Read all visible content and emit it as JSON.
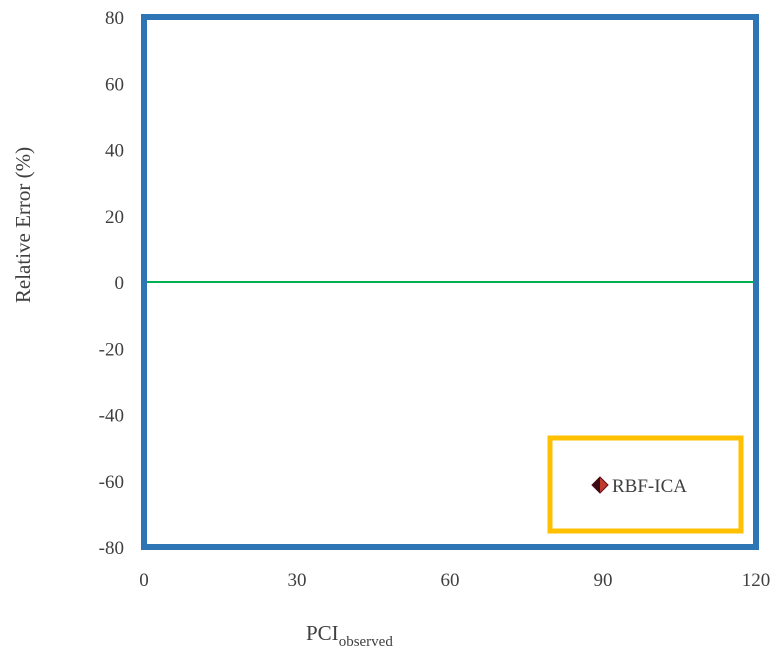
{
  "chart_data": {
    "type": "scatter",
    "title": "",
    "xlabel": "PCI",
    "xlabel_subscript": "observed",
    "ylabel": "Relative Error (%)",
    "xlim": [
      0,
      120
    ],
    "ylim": [
      -80,
      80
    ],
    "x_ticks": [
      0,
      30,
      60,
      90,
      120
    ],
    "y_ticks": [
      80,
      60,
      40,
      20,
      0,
      -20,
      -40,
      -60,
      -80
    ],
    "x_tick_labels": [
      "0",
      "30",
      "60",
      "90",
      "120"
    ],
    "y_tick_labels": [
      "80",
      "60",
      "40",
      "20",
      "0",
      "-20",
      "-40",
      "-60",
      "-80"
    ],
    "reference_line": {
      "y": 0,
      "color": "#00b050"
    },
    "grid": false,
    "legend_position": "bottom-right",
    "series": [
      {
        "name": "RBF-ICA",
        "marker": "diamond",
        "color": "#8b1a2e",
        "points": []
      }
    ],
    "colors": {
      "frame": "#2e75b6",
      "legend_border": "#ffc000",
      "zero_line": "#00b050"
    }
  }
}
